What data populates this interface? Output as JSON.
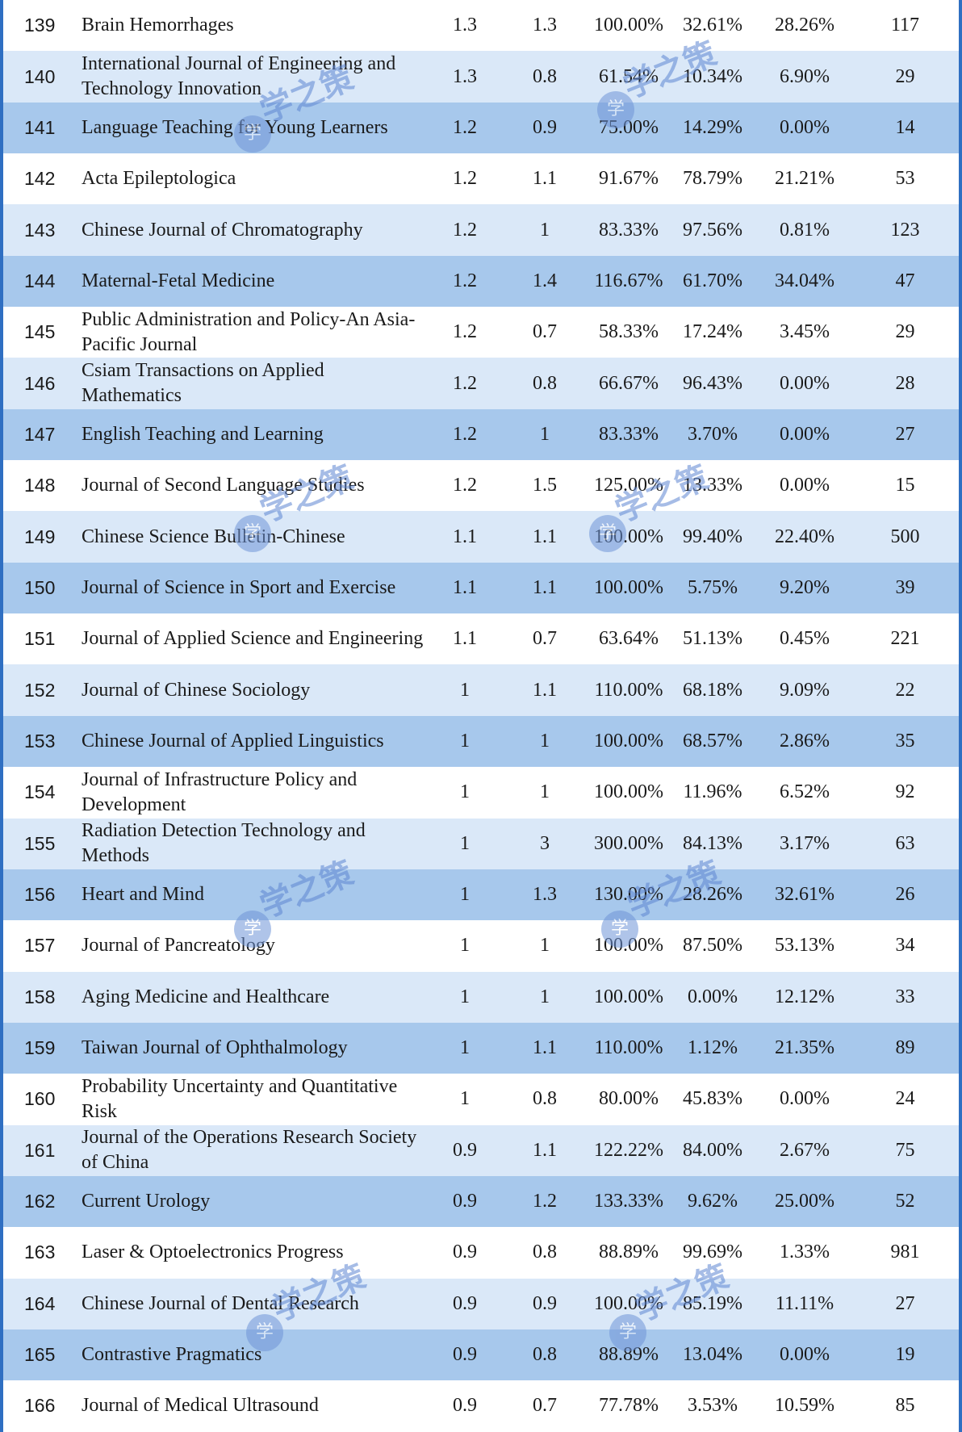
{
  "watermark": {
    "text": "学之策",
    "seal_char": "学"
  },
  "rows": [
    {
      "rank": "139",
      "name": "Brain Hemorrhages",
      "c1": "1.3",
      "c2": "1.3",
      "c3": "100.00%",
      "c4": "32.61%",
      "c5": "28.26%",
      "c6": "117"
    },
    {
      "rank": "140",
      "name": "International Journal of Engineering and Technology Innovation",
      "c1": "1.3",
      "c2": "0.8",
      "c3": "61.54%",
      "c4": "10.34%",
      "c5": "6.90%",
      "c6": "29"
    },
    {
      "rank": "141",
      "name": "Language Teaching for Young Learners",
      "c1": "1.2",
      "c2": "0.9",
      "c3": "75.00%",
      "c4": "14.29%",
      "c5": "0.00%",
      "c6": "14"
    },
    {
      "rank": "142",
      "name": "Acta Epileptologica",
      "c1": "1.2",
      "c2": "1.1",
      "c3": "91.67%",
      "c4": "78.79%",
      "c5": "21.21%",
      "c6": "53"
    },
    {
      "rank": "143",
      "name": "Chinese Journal of Chromatography",
      "c1": "1.2",
      "c2": "1",
      "c3": "83.33%",
      "c4": "97.56%",
      "c5": "0.81%",
      "c6": "123"
    },
    {
      "rank": "144",
      "name": "Maternal-Fetal Medicine",
      "c1": "1.2",
      "c2": "1.4",
      "c3": "116.67%",
      "c4": "61.70%",
      "c5": "34.04%",
      "c6": "47"
    },
    {
      "rank": "145",
      "name": "Public Administration and Policy-An Asia-Pacific Journal",
      "c1": "1.2",
      "c2": "0.7",
      "c3": "58.33%",
      "c4": "17.24%",
      "c5": "3.45%",
      "c6": "29"
    },
    {
      "rank": "146",
      "name": "Csiam Transactions on Applied Mathematics",
      "c1": "1.2",
      "c2": "0.8",
      "c3": "66.67%",
      "c4": "96.43%",
      "c5": "0.00%",
      "c6": "28"
    },
    {
      "rank": "147",
      "name": "English Teaching and Learning",
      "c1": "1.2",
      "c2": "1",
      "c3": "83.33%",
      "c4": "3.70%",
      "c5": "0.00%",
      "c6": "27"
    },
    {
      "rank": "148",
      "name": "Journal of Second Language Studies",
      "c1": "1.2",
      "c2": "1.5",
      "c3": "125.00%",
      "c4": "13.33%",
      "c5": "0.00%",
      "c6": "15"
    },
    {
      "rank": "149",
      "name": "Chinese Science Bulletin-Chinese",
      "c1": "1.1",
      "c2": "1.1",
      "c3": "100.00%",
      "c4": "99.40%",
      "c5": "22.40%",
      "c6": "500"
    },
    {
      "rank": "150",
      "name": "Journal of Science in Sport and Exercise",
      "c1": "1.1",
      "c2": "1.1",
      "c3": "100.00%",
      "c4": "5.75%",
      "c5": "9.20%",
      "c6": "39"
    },
    {
      "rank": "151",
      "name": "Journal of Applied Science and Engineering",
      "c1": "1.1",
      "c2": "0.7",
      "c3": "63.64%",
      "c4": "51.13%",
      "c5": "0.45%",
      "c6": "221"
    },
    {
      "rank": "152",
      "name": "Journal of Chinese Sociology",
      "c1": "1",
      "c2": "1.1",
      "c3": "110.00%",
      "c4": "68.18%",
      "c5": "9.09%",
      "c6": "22"
    },
    {
      "rank": "153",
      "name": "Chinese Journal of Applied Linguistics",
      "c1": "1",
      "c2": "1",
      "c3": "100.00%",
      "c4": "68.57%",
      "c5": "2.86%",
      "c6": "35"
    },
    {
      "rank": "154",
      "name": "Journal of Infrastructure Policy and Development",
      "c1": "1",
      "c2": "1",
      "c3": "100.00%",
      "c4": "11.96%",
      "c5": "6.52%",
      "c6": "92"
    },
    {
      "rank": "155",
      "name": "Radiation Detection Technology and Methods",
      "c1": "1",
      "c2": "3",
      "c3": "300.00%",
      "c4": "84.13%",
      "c5": "3.17%",
      "c6": "63"
    },
    {
      "rank": "156",
      "name": "Heart and Mind",
      "c1": "1",
      "c2": "1.3",
      "c3": "130.00%",
      "c4": "28.26%",
      "c5": "32.61%",
      "c6": "26"
    },
    {
      "rank": "157",
      "name": "Journal of Pancreatology",
      "c1": "1",
      "c2": "1",
      "c3": "100.00%",
      "c4": "87.50%",
      "c5": "53.13%",
      "c6": "34"
    },
    {
      "rank": "158",
      "name": "Aging Medicine and Healthcare",
      "c1": "1",
      "c2": "1",
      "c3": "100.00%",
      "c4": "0.00%",
      "c5": "12.12%",
      "c6": "33"
    },
    {
      "rank": "159",
      "name": "Taiwan Journal of Ophthalmology",
      "c1": "1",
      "c2": "1.1",
      "c3": "110.00%",
      "c4": "1.12%",
      "c5": "21.35%",
      "c6": "89"
    },
    {
      "rank": "160",
      "name": "Probability Uncertainty and Quantitative Risk",
      "c1": "1",
      "c2": "0.8",
      "c3": "80.00%",
      "c4": "45.83%",
      "c5": "0.00%",
      "c6": "24"
    },
    {
      "rank": "161",
      "name": "Journal of the Operations Research Society of China",
      "c1": "0.9",
      "c2": "1.1",
      "c3": "122.22%",
      "c4": "84.00%",
      "c5": "2.67%",
      "c6": "75"
    },
    {
      "rank": "162",
      "name": "Current Urology",
      "c1": "0.9",
      "c2": "1.2",
      "c3": "133.33%",
      "c4": "9.62%",
      "c5": "25.00%",
      "c6": "52"
    },
    {
      "rank": "163",
      "name": "Laser & Optoelectronics Progress",
      "c1": "0.9",
      "c2": "0.8",
      "c3": "88.89%",
      "c4": "99.69%",
      "c5": "1.33%",
      "c6": "981"
    },
    {
      "rank": "164",
      "name": "Chinese Journal of Dental Research",
      "c1": "0.9",
      "c2": "0.9",
      "c3": "100.00%",
      "c4": "85.19%",
      "c5": "11.11%",
      "c6": "27"
    },
    {
      "rank": "165",
      "name": "Contrastive Pragmatics",
      "c1": "0.9",
      "c2": "0.8",
      "c3": "88.89%",
      "c4": "13.04%",
      "c5": "0.00%",
      "c6": "19"
    },
    {
      "rank": "166",
      "name": "Journal of Medical Ultrasound",
      "c1": "0.9",
      "c2": "0.7",
      "c3": "77.78%",
      "c4": "3.53%",
      "c5": "10.59%",
      "c6": "85"
    }
  ]
}
